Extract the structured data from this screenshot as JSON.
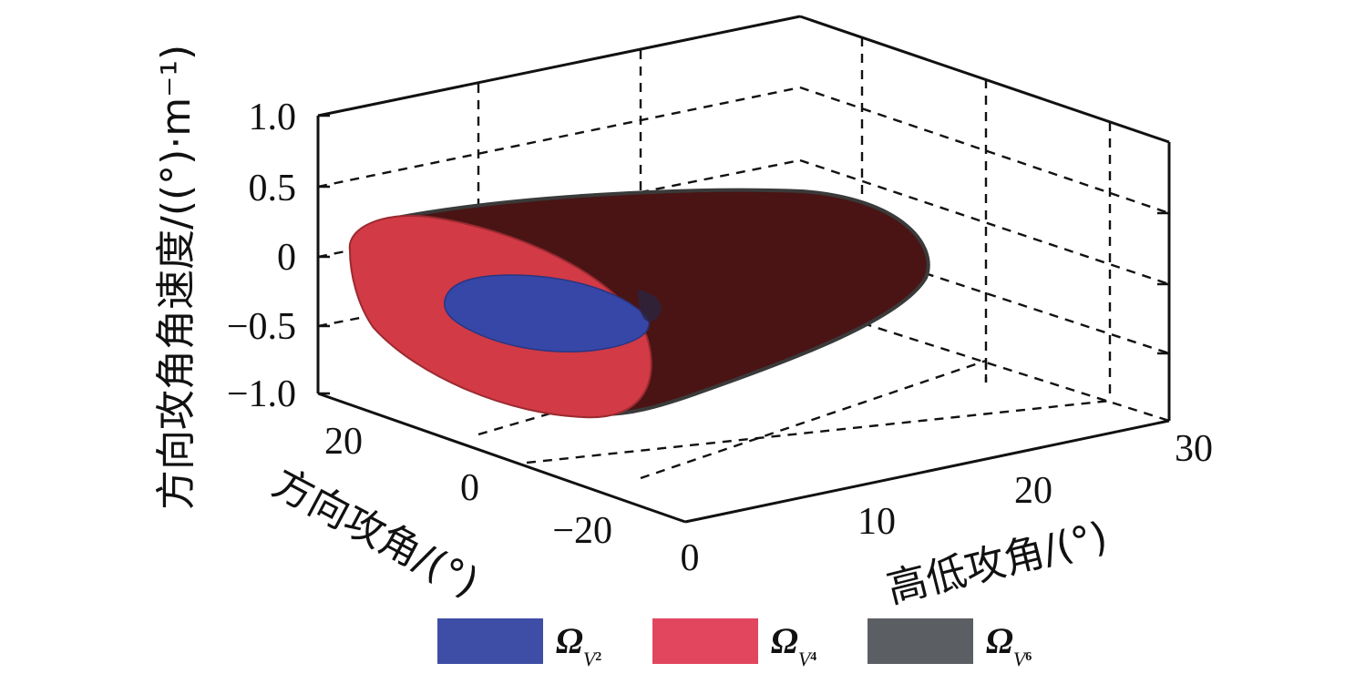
{
  "chart_data": {
    "type": "3d-surface",
    "xlabel": "高低攻角/(°)",
    "ylabel": "方向攻角/(°)",
    "zlabel": "方向攻角角速度/((°)·m⁻¹)",
    "x_ticks": [
      "0",
      "10",
      "20",
      "30"
    ],
    "y_ticks": [
      "20",
      "0",
      "−20"
    ],
    "z_ticks": [
      "1.0",
      "0.5",
      "0",
      "−0.5",
      "−1.0"
    ],
    "xlim": [
      0,
      30
    ],
    "ylim": [
      -30,
      30
    ],
    "zlim": [
      -1.0,
      1.0
    ],
    "grid": true,
    "legend_position": "bottom",
    "series": [
      {
        "name": "Ω",
        "subscript": "V",
        "subscript2": "2",
        "color": "#3a4fb0"
      },
      {
        "name": "Ω",
        "subscript": "V",
        "subscript2": "4",
        "color": "#e0435a"
      },
      {
        "name": "Ω",
        "subscript": "V",
        "subscript2": "6",
        "color": "#5b5f63"
      }
    ]
  }
}
